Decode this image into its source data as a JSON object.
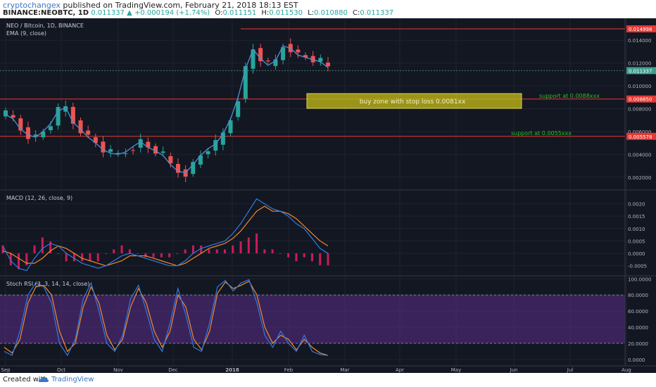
{
  "header": {
    "author": "cryptochangex",
    "published_text": " published on TradingView.com, February 21, 2018 18:13 EST",
    "symbol": "BINANCE:NEOBTC, 1D",
    "last": "0.011337",
    "change": "▲ +0.000194 (+1.74%)",
    "o_label": "O:",
    "o": "0.011151",
    "h_label": "H:",
    "h": "0.011530",
    "l_label": "L:",
    "l": "0.010880",
    "c_label": "C:",
    "c": "0.011337"
  },
  "legend": {
    "title": "NEO / Bitcoin, 1D, BINANCE",
    "ema": "EMA (9, close)",
    "macd": "MACD (12, 26, close, 9)",
    "stoch": "Stoch RSI (3, 3, 14, 14, close)"
  },
  "footer": {
    "created_with": "Created with",
    "brand": "TradingView"
  },
  "colors": {
    "background": "#131722",
    "up": "#26a69a",
    "down": "#ef5350",
    "ema": "#4e8fd6",
    "macd": "#2f7be5",
    "signal": "#f28a2c",
    "hist": "#e91e63",
    "stoch_k": "#2f7be5",
    "stoch_d": "#f28a2c",
    "stoch_band": "#5b2d8a",
    "resistance": "#e53935",
    "zone": "#b8b118",
    "annotation": "#21c32a"
  },
  "chart_data": [
    {
      "type": "candlestick",
      "title": "NEO / Bitcoin, 1D, BINANCE",
      "x_ticks": [
        "Sep",
        "Oct",
        "Nov",
        "Dec",
        "2018",
        "Feb",
        "Mar",
        "Apr",
        "May",
        "Jun",
        "Jul",
        "Aug"
      ],
      "y_ticks": [
        "0.014000",
        "0.012000",
        "0.010000",
        "0.008000",
        "0.006000",
        "0.004000",
        "0.002000"
      ],
      "ylim": [
        0.001,
        0.0158
      ],
      "series": [
        {
          "name": "EMA (9, close)",
          "values": [
            0.0075,
            0.0071,
            0.0062,
            0.0057,
            0.0055,
            0.006,
            0.0067,
            0.0078,
            0.0081,
            0.0068,
            0.0062,
            0.0055,
            0.005,
            0.0044,
            0.0041,
            0.004,
            0.0042,
            0.0047,
            0.0051,
            0.0046,
            0.0043,
            0.0039,
            0.0031,
            0.0025,
            0.0024,
            0.0031,
            0.0039,
            0.0045,
            0.0049,
            0.0058,
            0.0071,
            0.009,
            0.0115,
            0.0132,
            0.0124,
            0.0118,
            0.0122,
            0.0135,
            0.0133,
            0.0127,
            0.0125,
            0.0123,
            0.0121,
            0.0116
          ]
        }
      ],
      "price_levels": [
        {
          "label": "0.014998",
          "value": 0.014998
        },
        {
          "label": "0.011337",
          "value": 0.011337
        },
        {
          "label": "0.008850",
          "value": 0.00885
        },
        {
          "label": "0.005578",
          "value": 0.005578
        }
      ],
      "annotations": [
        "buy zone with stop loss 0.0081xx",
        "support at 0.0088xxx",
        "support at 0.0055xxx"
      ]
    },
    {
      "type": "line",
      "title": "MACD (12, 26, close, 9)",
      "y_ticks": [
        "0.0020",
        "0.0015",
        "0.0010",
        "0.0005",
        "0.0000",
        "-0.0005"
      ],
      "ylim": [
        -0.00085,
        0.0025
      ],
      "series": [
        {
          "name": "MACD",
          "values": [
            0.0003,
            -0.0003,
            -0.0006,
            -0.0007,
            -0.0002,
            0.0002,
            0.0004,
            0.0003,
            0.0,
            -0.0002,
            -0.0004,
            -0.0005,
            -0.0006,
            -0.0005,
            -0.0003,
            -0.0001,
            0.0,
            -0.0001,
            -0.0002,
            -0.0003,
            -0.0004,
            -0.0005,
            -0.0005,
            -0.0003,
            0.0,
            0.0002,
            0.0003,
            0.0004,
            0.0005,
            0.0008,
            0.0012,
            0.0017,
            0.0022,
            0.002,
            0.0018,
            0.0017,
            0.0015,
            0.0012,
            0.001,
            0.0006,
            0.0002,
            0.0
          ]
        },
        {
          "name": "Signal",
          "values": [
            0.0001,
            0.0,
            -0.0002,
            -0.0004,
            -0.0004,
            -0.0002,
            0.0001,
            0.0003,
            0.0002,
            0.0,
            -0.0002,
            -0.0003,
            -0.0004,
            -0.0005,
            -0.0004,
            -0.0003,
            -0.0001,
            -0.0001,
            -0.0001,
            -0.0002,
            -0.0003,
            -0.0004,
            -0.0005,
            -0.0004,
            -0.0002,
            0.0,
            0.0002,
            0.0003,
            0.0004,
            0.0006,
            0.0009,
            0.0013,
            0.0017,
            0.0019,
            0.0017,
            0.0017,
            0.0016,
            0.0014,
            0.0011,
            0.0008,
            0.0005,
            0.0003
          ]
        }
      ]
    },
    {
      "type": "line",
      "title": "Stoch RSI (3, 3, 14, 14, close)",
      "y_ticks": [
        "100.0000",
        "80.0000",
        "60.0000",
        "40.0000",
        "20.0000",
        "0.0000"
      ],
      "ylim": [
        -8,
        102
      ],
      "band": [
        20,
        80
      ],
      "series": [
        {
          "name": "K",
          "values": [
            10,
            5,
            35,
            80,
            95,
            90,
            70,
            20,
            5,
            25,
            75,
            95,
            60,
            20,
            10,
            30,
            75,
            92,
            60,
            25,
            10,
            45,
            88,
            55,
            15,
            10,
            45,
            90,
            98,
            85,
            95,
            99,
            70,
            30,
            15,
            35,
            20,
            10,
            30,
            10,
            6,
            5
          ]
        },
        {
          "name": "D",
          "values": [
            15,
            8,
            25,
            70,
            90,
            92,
            80,
            35,
            10,
            20,
            65,
            90,
            70,
            30,
            12,
            25,
            65,
            88,
            70,
            35,
            15,
            35,
            80,
            65,
            25,
            12,
            35,
            82,
            96,
            88,
            92,
            97,
            80,
            40,
            20,
            30,
            25,
            12,
            25,
            15,
            8,
            5
          ]
        }
      ]
    }
  ]
}
